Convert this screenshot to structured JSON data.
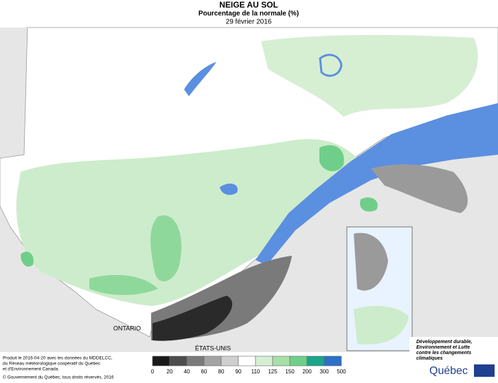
{
  "header": {
    "title": "NEIGE AU SOL",
    "subtitle": "Pourcentage de la normale (%)",
    "date": "29 février 2016"
  },
  "map_labels": {
    "ontario": "ONTARIO",
    "usa": "ÉTATS-UNIS"
  },
  "legend": {
    "colors": [
      "#1a1a1a",
      "#4d4d4d",
      "#7a7a7a",
      "#a3a3a3",
      "#cfcfcf",
      "#ffffff",
      "#d6efd3",
      "#a8dfa8",
      "#6fcf8a",
      "#1aa58a",
      "#2e6fc8"
    ],
    "labels": [
      0,
      20,
      40,
      60,
      80,
      90,
      110,
      125,
      150,
      200,
      300,
      500
    ]
  },
  "credits": [
    "Produit le 2016-04-20 avec les données du MDDELCC,",
    "du Réseau météorologique coopératif du Québec",
    "et d'Environnement Canada.",
    "© Gouvernement du Québec, tous droits réservés, 2016"
  ],
  "logo": {
    "lines": [
      "Développement durable,",
      "Environnement et Lutte",
      "contre les changements",
      "climatiques"
    ],
    "name": "Québec"
  }
}
